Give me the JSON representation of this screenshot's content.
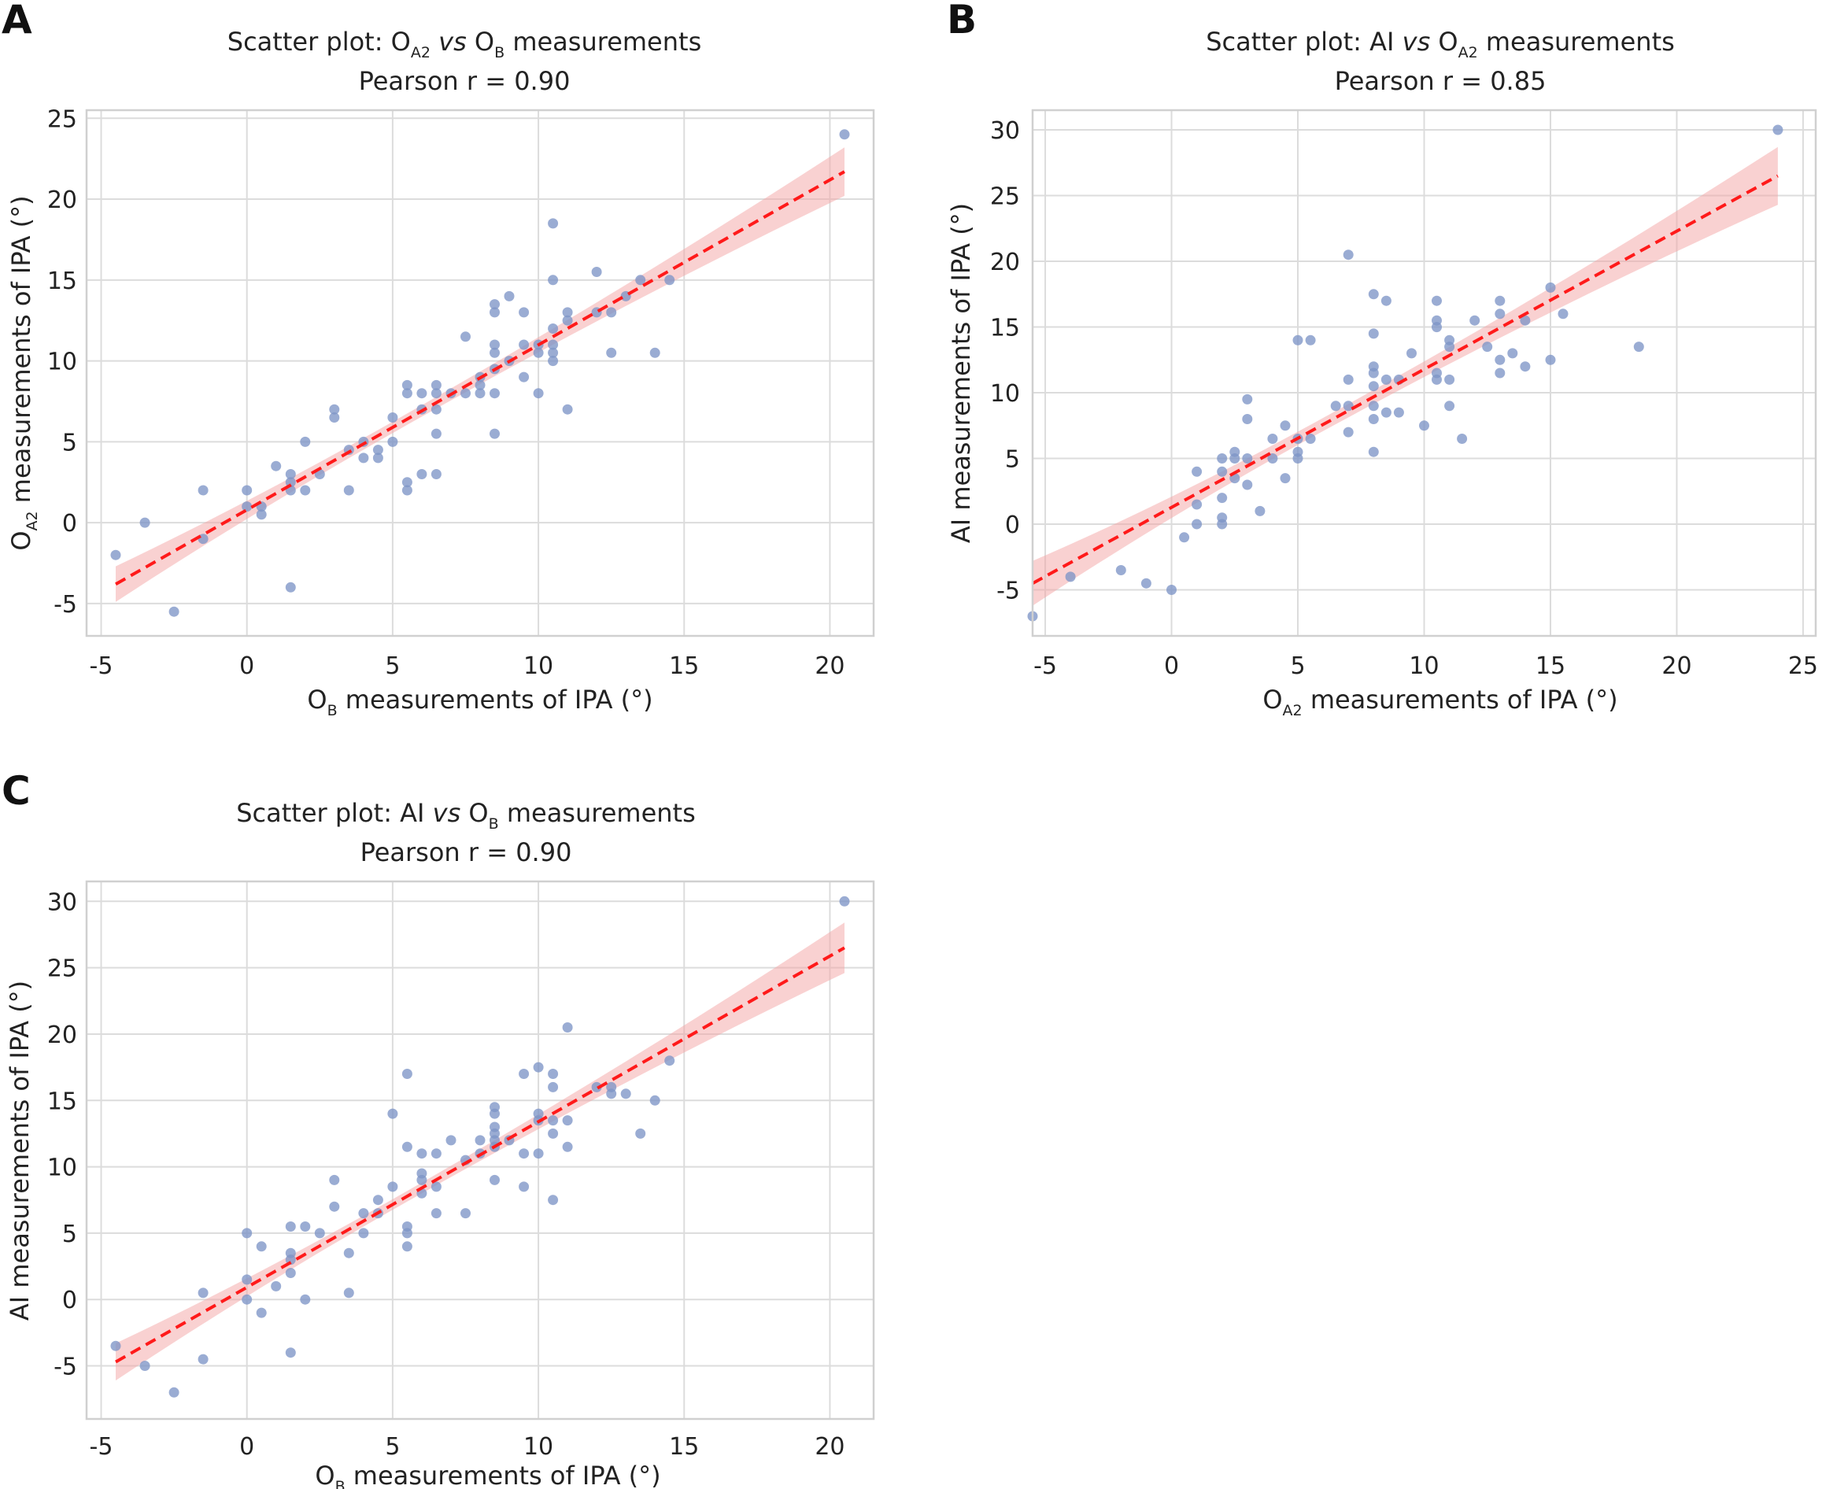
{
  "colors": {
    "point": "#7e95c6",
    "regression_line": "#ff1a1a",
    "confidence_band": "#f4a4a4",
    "grid": "#dcdcdc"
  },
  "panels": [
    {
      "letter": "A",
      "title_prefix": "Scatter plot: O",
      "title_sub1": "A2",
      "title_vs": "vs",
      "title_o2": "O",
      "title_sub2": "B",
      "title_suffix": "measurements",
      "pearson": "Pearson r = 0.90",
      "xlabel_main": "O",
      "xlabel_sub": "B",
      "xlabel_rest": "measurements of IPA (°)",
      "ylabel_main": "O",
      "ylabel_sub": "A2",
      "ylabel_rest": "measurements of IPA (°)",
      "x_ticks": [
        "-5",
        "0",
        "5",
        "10",
        "15",
        "20"
      ],
      "y_ticks": [
        "-5",
        "0",
        "5",
        "10",
        "15",
        "20",
        "25"
      ]
    },
    {
      "letter": "B",
      "title_prefix": "Scatter plot: AI",
      "title_vs": "vs",
      "title_o2": "O",
      "title_sub2": "A2",
      "title_suffix": "measurements",
      "pearson": "Pearson r = 0.85",
      "xlabel_main": "O",
      "xlabel_sub": "A2",
      "xlabel_rest": "measurements of IPA (°)",
      "ylabel_full": "AI measurements of IPA (°)",
      "x_ticks": [
        "-5",
        "0",
        "5",
        "10",
        "15",
        "20",
        "25"
      ],
      "y_ticks": [
        "-5",
        "0",
        "5",
        "10",
        "15",
        "20",
        "25",
        "30"
      ]
    },
    {
      "letter": "C",
      "title_prefix": "Scatter plot: AI",
      "title_vs": "vs",
      "title_o2": "O",
      "title_sub2": "B",
      "title_suffix": "measurements",
      "pearson": "Pearson r = 0.90",
      "xlabel_main": "O",
      "xlabel_sub": "B",
      "xlabel_rest": "measurements of IPA (°)",
      "ylabel_full": "AI measurements of IPA (°)",
      "x_ticks": [
        "-5",
        "0",
        "5",
        "10",
        "15",
        "20"
      ],
      "y_ticks": [
        "-5",
        "0",
        "5",
        "10",
        "15",
        "20",
        "25",
        "30"
      ]
    }
  ],
  "chart_data": [
    {
      "type": "scatter",
      "title": "Scatter plot: OA2 vs OB measurements",
      "subtitle": "Pearson r = 0.90",
      "xlabel": "OB measurements of IPA (°)",
      "ylabel": "OA2 measurements of IPA (°)",
      "xlim": [
        -5.5,
        21.5
      ],
      "ylim": [
        -7,
        25.5
      ],
      "grid": true,
      "points": [
        [
          -4.5,
          -2
        ],
        [
          -3.5,
          0
        ],
        [
          -2.5,
          -5.5
        ],
        [
          -1.5,
          2
        ],
        [
          -1.5,
          -1
        ],
        [
          0,
          2
        ],
        [
          0,
          1
        ],
        [
          0.5,
          1
        ],
        [
          0.5,
          0.5
        ],
        [
          1,
          3.5
        ],
        [
          1.5,
          3
        ],
        [
          1.5,
          2.5
        ],
        [
          1.5,
          2
        ],
        [
          1.5,
          -4
        ],
        [
          2,
          5
        ],
        [
          2,
          2
        ],
        [
          2.5,
          3
        ],
        [
          3,
          7
        ],
        [
          3,
          6.5
        ],
        [
          3.5,
          4.5
        ],
        [
          3.5,
          2
        ],
        [
          4,
          5
        ],
        [
          4,
          4
        ],
        [
          4.5,
          4.5
        ],
        [
          4.5,
          4
        ],
        [
          5,
          6.5
        ],
        [
          5,
          5
        ],
        [
          5.5,
          8.5
        ],
        [
          5.5,
          8
        ],
        [
          5.5,
          2.5
        ],
        [
          5.5,
          2
        ],
        [
          6,
          8
        ],
        [
          6,
          7
        ],
        [
          6,
          3
        ],
        [
          6.5,
          8.5
        ],
        [
          6.5,
          8
        ],
        [
          6.5,
          7
        ],
        [
          6.5,
          5.5
        ],
        [
          6.5,
          3
        ],
        [
          7,
          8
        ],
        [
          7.5,
          11.5
        ],
        [
          7.5,
          8
        ],
        [
          8,
          9
        ],
        [
          8,
          8.5
        ],
        [
          8,
          8
        ],
        [
          8.5,
          13.5
        ],
        [
          8.5,
          13
        ],
        [
          8.5,
          11
        ],
        [
          8.5,
          10.5
        ],
        [
          8.5,
          9.5
        ],
        [
          8.5,
          8
        ],
        [
          8.5,
          5.5
        ],
        [
          9,
          14
        ],
        [
          9,
          10
        ],
        [
          9.5,
          13
        ],
        [
          9.5,
          11
        ],
        [
          9.5,
          9
        ],
        [
          10,
          11
        ],
        [
          10,
          10.5
        ],
        [
          10,
          8
        ],
        [
          10.5,
          18.5
        ],
        [
          10.5,
          15
        ],
        [
          10.5,
          12
        ],
        [
          10.5,
          11
        ],
        [
          10.5,
          10.5
        ],
        [
          10.5,
          10
        ],
        [
          11,
          13
        ],
        [
          11,
          12.5
        ],
        [
          11,
          7
        ],
        [
          12,
          15.5
        ],
        [
          12,
          13
        ],
        [
          12.5,
          13
        ],
        [
          12.5,
          10.5
        ],
        [
          13,
          14
        ],
        [
          13.5,
          15
        ],
        [
          14,
          10.5
        ],
        [
          14.5,
          15
        ],
        [
          20.5,
          24
        ]
      ],
      "regression": {
        "x": [
          -4.5,
          20.5
        ],
        "y": [
          -3.8,
          21.7
        ],
        "ci_half_width": [
          1.1,
          0.35,
          1.5
        ]
      }
    },
    {
      "type": "scatter",
      "title": "Scatter plot: AI vs OA2 measurements",
      "subtitle": "Pearson r = 0.85",
      "xlabel": "OA2 measurements of IPA (°)",
      "ylabel": "AI measurements of IPA (°)",
      "xlim": [
        -5.5,
        25.5
      ],
      "ylim": [
        -8.5,
        31.5
      ],
      "grid": true,
      "points": [
        [
          -5.5,
          -7
        ],
        [
          -4,
          -4
        ],
        [
          -2,
          -3.5
        ],
        [
          -1,
          -4.5
        ],
        [
          0,
          -5
        ],
        [
          0.5,
          -1
        ],
        [
          1,
          4
        ],
        [
          1,
          1.5
        ],
        [
          1,
          0
        ],
        [
          2,
          5
        ],
        [
          2,
          4
        ],
        [
          2,
          2
        ],
        [
          2,
          0.5
        ],
        [
          2,
          0
        ],
        [
          2.5,
          5.5
        ],
        [
          2.5,
          5
        ],
        [
          2.5,
          3.5
        ],
        [
          3,
          9.5
        ],
        [
          3,
          8
        ],
        [
          3,
          5
        ],
        [
          3,
          3
        ],
        [
          3.5,
          1
        ],
        [
          4,
          6.5
        ],
        [
          4,
          5
        ],
        [
          4.5,
          7.5
        ],
        [
          4.5,
          3.5
        ],
        [
          5,
          14
        ],
        [
          5,
          6.5
        ],
        [
          5,
          5.5
        ],
        [
          5,
          5
        ],
        [
          5.5,
          14
        ],
        [
          5.5,
          6.5
        ],
        [
          6.5,
          9
        ],
        [
          7,
          20.5
        ],
        [
          7,
          11
        ],
        [
          7,
          9
        ],
        [
          7,
          7
        ],
        [
          8,
          17.5
        ],
        [
          8,
          14.5
        ],
        [
          8,
          12
        ],
        [
          8,
          11.5
        ],
        [
          8,
          10.5
        ],
        [
          8,
          9
        ],
        [
          8,
          8
        ],
        [
          8,
          5.5
        ],
        [
          8.5,
          17
        ],
        [
          8.5,
          11
        ],
        [
          8.5,
          8.5
        ],
        [
          9,
          11
        ],
        [
          9,
          8.5
        ],
        [
          9.5,
          13
        ],
        [
          10,
          7.5
        ],
        [
          10.5,
          17
        ],
        [
          10.5,
          15.5
        ],
        [
          10.5,
          15
        ],
        [
          10.5,
          11.5
        ],
        [
          10.5,
          11
        ],
        [
          11,
          14
        ],
        [
          11,
          13.5
        ],
        [
          11,
          11
        ],
        [
          11,
          9
        ],
        [
          11.5,
          6.5
        ],
        [
          12,
          15.5
        ],
        [
          12.5,
          13.5
        ],
        [
          13,
          17
        ],
        [
          13,
          16
        ],
        [
          13,
          12.5
        ],
        [
          13,
          11.5
        ],
        [
          13.5,
          13
        ],
        [
          14,
          15.5
        ],
        [
          14,
          12
        ],
        [
          15,
          18
        ],
        [
          15,
          12.5
        ],
        [
          15.5,
          16
        ],
        [
          18.5,
          13.5
        ],
        [
          24,
          30
        ]
      ],
      "regression": {
        "x": [
          -5.5,
          24
        ],
        "y": [
          -4.5,
          26.5
        ],
        "ci_half_width": [
          1.7,
          0.5,
          2.2
        ]
      }
    },
    {
      "type": "scatter",
      "title": "Scatter plot: AI vs OB measurements",
      "subtitle": "Pearson r = 0.90",
      "xlabel": "OB measurements of IPA (°)",
      "ylabel": "AI measurements of IPA (°)",
      "xlim": [
        -5.5,
        21.5
      ],
      "ylim": [
        -9,
        31.5
      ],
      "grid": true,
      "points": [
        [
          -4.5,
          -3.5
        ],
        [
          -3.5,
          -5
        ],
        [
          -2.5,
          -7
        ],
        [
          -1.5,
          0.5
        ],
        [
          -1.5,
          -4.5
        ],
        [
          0,
          5
        ],
        [
          0,
          1.5
        ],
        [
          0,
          0
        ],
        [
          0.5,
          4
        ],
        [
          0.5,
          -1
        ],
        [
          1,
          1
        ],
        [
          1.5,
          5.5
        ],
        [
          1.5,
          3.5
        ],
        [
          1.5,
          3
        ],
        [
          1.5,
          2
        ],
        [
          1.5,
          -4
        ],
        [
          2,
          5.5
        ],
        [
          2,
          0
        ],
        [
          2.5,
          5
        ],
        [
          3,
          9
        ],
        [
          3,
          7
        ],
        [
          3.5,
          3.5
        ],
        [
          3.5,
          0.5
        ],
        [
          4,
          6.5
        ],
        [
          4,
          5
        ],
        [
          4.5,
          7.5
        ],
        [
          4.5,
          6.5
        ],
        [
          5,
          14
        ],
        [
          5,
          8.5
        ],
        [
          5.5,
          17
        ],
        [
          5.5,
          11.5
        ],
        [
          5.5,
          5.5
        ],
        [
          5.5,
          5
        ],
        [
          5.5,
          4
        ],
        [
          6,
          11
        ],
        [
          6,
          9.5
        ],
        [
          6,
          9
        ],
        [
          6,
          8
        ],
        [
          6.5,
          11
        ],
        [
          6.5,
          8.5
        ],
        [
          6.5,
          6.5
        ],
        [
          7,
          12
        ],
        [
          7.5,
          10.5
        ],
        [
          7.5,
          6.5
        ],
        [
          8,
          12
        ],
        [
          8,
          11
        ],
        [
          8.5,
          14.5
        ],
        [
          8.5,
          14
        ],
        [
          8.5,
          13
        ],
        [
          8.5,
          12.5
        ],
        [
          8.5,
          12
        ],
        [
          8.5,
          11.5
        ],
        [
          8.5,
          9
        ],
        [
          9,
          12
        ],
        [
          9.5,
          17
        ],
        [
          9.5,
          11
        ],
        [
          9.5,
          8.5
        ],
        [
          10,
          17.5
        ],
        [
          10,
          14
        ],
        [
          10,
          13.5
        ],
        [
          10,
          11
        ],
        [
          10.5,
          17
        ],
        [
          10.5,
          16
        ],
        [
          10.5,
          13.5
        ],
        [
          10.5,
          12.5
        ],
        [
          10.5,
          7.5
        ],
        [
          11,
          20.5
        ],
        [
          11,
          13.5
        ],
        [
          11,
          11.5
        ],
        [
          12,
          16
        ],
        [
          12.5,
          16
        ],
        [
          12.5,
          15.5
        ],
        [
          13,
          15.5
        ],
        [
          13.5,
          12.5
        ],
        [
          14,
          15
        ],
        [
          14.5,
          18
        ],
        [
          20.5,
          30
        ]
      ],
      "regression": {
        "x": [
          -4.5,
          20.5
        ],
        "y": [
          -4.7,
          26.5
        ],
        "ci_half_width": [
          1.4,
          0.4,
          1.9
        ]
      }
    }
  ]
}
